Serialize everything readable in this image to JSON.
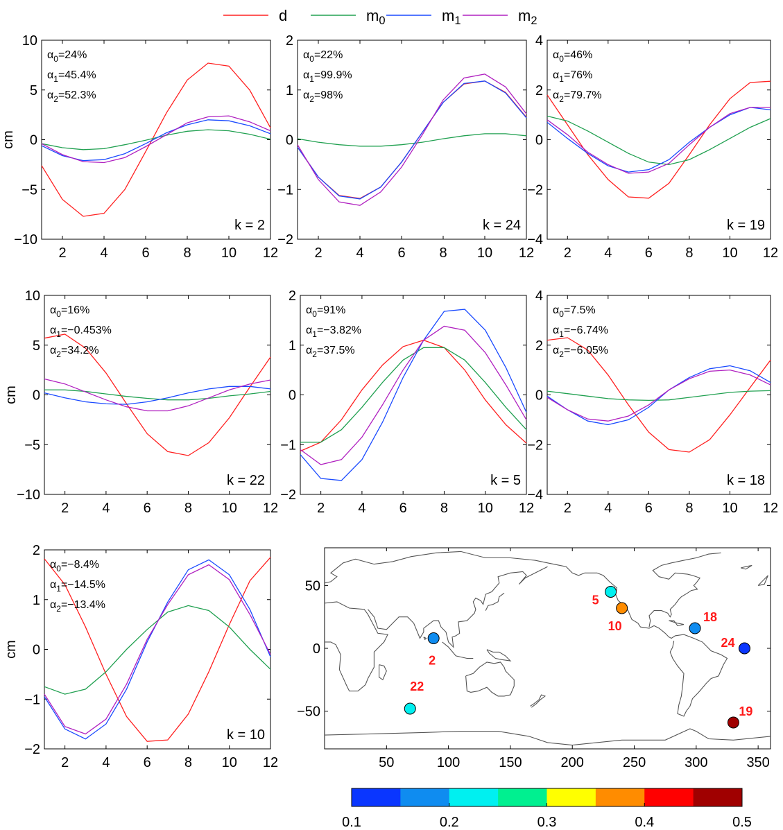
{
  "chart_data": {
    "legend": [
      {
        "label": "d",
        "sub": "",
        "color": "#ff2020"
      },
      {
        "label": "m",
        "sub": "0",
        "color": "#20a050"
      },
      {
        "label": "m",
        "sub": "1",
        "color": "#1a4aff"
      },
      {
        "label": "m",
        "sub": "2",
        "color": "#b020c0"
      }
    ],
    "ylabel": "cm",
    "x": [
      1,
      2,
      3,
      4,
      5,
      6,
      7,
      8,
      9,
      10,
      11,
      12
    ],
    "xticks": [
      2,
      4,
      6,
      8,
      10,
      12
    ],
    "panels": [
      {
        "type": "line",
        "k": "k = 2",
        "ylim": [
          -10,
          10
        ],
        "yticks": [
          -10,
          -5,
          0,
          5,
          10
        ],
        "alphas": [
          [
            "0",
            "24%"
          ],
          [
            "1",
            "45.4%"
          ],
          [
            "2",
            "52.3%"
          ]
        ],
        "series": [
          {
            "key": "d",
            "values": [
              -2.6,
              -6.0,
              -7.7,
              -7.4,
              -5.0,
              -1.2,
              2.7,
              6.0,
              7.7,
              7.4,
              5.0,
              1.2
            ]
          },
          {
            "key": "m0",
            "values": [
              -0.4,
              -0.8,
              -1.0,
              -0.9,
              -0.5,
              -0.05,
              0.45,
              0.85,
              1.0,
              0.9,
              0.55,
              0.05
            ]
          },
          {
            "key": "m1",
            "values": [
              -0.6,
              -1.6,
              -2.1,
              -2.0,
              -1.4,
              -0.4,
              0.7,
              1.5,
              2.0,
              1.9,
              1.4,
              0.6
            ]
          },
          {
            "key": "m2",
            "values": [
              -0.4,
              -1.5,
              -2.2,
              -2.3,
              -1.8,
              -0.7,
              0.5,
              1.7,
              2.3,
              2.4,
              1.8,
              0.9
            ]
          }
        ]
      },
      {
        "type": "line",
        "k": "k = 24",
        "ylim": [
          -2,
          2
        ],
        "yticks": [
          -2,
          -1,
          0,
          1,
          2
        ],
        "alphas": [
          [
            "0",
            "22%"
          ],
          [
            "1",
            "99.9%"
          ],
          [
            "2",
            "98%"
          ]
        ],
        "series": [
          {
            "key": "d",
            "values": [
              -0.15,
              -0.75,
              -1.12,
              -1.18,
              -0.95,
              -0.45,
              0.15,
              0.75,
              1.12,
              1.18,
              0.95,
              0.45
            ]
          },
          {
            "key": "m0",
            "values": [
              0.02,
              -0.05,
              -0.1,
              -0.13,
              -0.13,
              -0.1,
              -0.05,
              0.02,
              0.08,
              0.12,
              0.12,
              0.08
            ]
          },
          {
            "key": "m1",
            "values": [
              -0.15,
              -0.75,
              -1.13,
              -1.19,
              -0.95,
              -0.45,
              0.15,
              0.75,
              1.13,
              1.18,
              0.94,
              0.44
            ]
          },
          {
            "key": "m2",
            "values": [
              -0.1,
              -0.8,
              -1.25,
              -1.32,
              -1.05,
              -0.55,
              0.1,
              0.8,
              1.24,
              1.32,
              1.06,
              0.52
            ]
          }
        ]
      },
      {
        "type": "line",
        "k": "k = 19",
        "ylim": [
          -4,
          4
        ],
        "yticks": [
          -4,
          -2,
          0,
          2,
          4
        ],
        "alphas": [
          [
            "0",
            "46%"
          ],
          [
            "1",
            "76%"
          ],
          [
            "2",
            "79.7%"
          ]
        ],
        "series": [
          {
            "key": "d",
            "values": [
              1.8,
              0.6,
              -0.6,
              -1.6,
              -2.3,
              -2.35,
              -1.75,
              -0.6,
              0.6,
              1.65,
              2.3,
              2.35
            ]
          },
          {
            "key": "m0",
            "values": [
              0.95,
              0.75,
              0.35,
              -0.1,
              -0.55,
              -0.9,
              -1.0,
              -0.8,
              -0.4,
              0.05,
              0.5,
              0.85
            ]
          },
          {
            "key": "m1",
            "values": [
              0.7,
              0.05,
              -0.55,
              -1.05,
              -1.3,
              -1.2,
              -0.8,
              -0.1,
              0.5,
              1.0,
              1.3,
              1.2
            ]
          },
          {
            "key": "m2",
            "values": [
              0.8,
              0.2,
              -0.5,
              -1.0,
              -1.35,
              -1.3,
              -0.95,
              -0.2,
              0.5,
              1.05,
              1.3,
              1.3
            ]
          }
        ]
      },
      {
        "type": "line",
        "k": "k = 22",
        "ylim": [
          -10,
          10
        ],
        "yticks": [
          -10,
          -5,
          0,
          5,
          10
        ],
        "alphas": [
          [
            "0",
            "16%"
          ],
          [
            "1",
            "−0.453%"
          ],
          [
            "2",
            "34.2%"
          ]
        ],
        "series": [
          {
            "key": "d",
            "values": [
              5.7,
              6.1,
              4.7,
              2.2,
              -0.9,
              -3.9,
              -5.7,
              -6.1,
              -4.8,
              -2.3,
              0.8,
              3.8
            ]
          },
          {
            "key": "m0",
            "values": [
              0.5,
              0.5,
              0.35,
              0.1,
              -0.15,
              -0.35,
              -0.5,
              -0.5,
              -0.35,
              -0.1,
              0.1,
              0.35
            ]
          },
          {
            "key": "m1",
            "values": [
              0.2,
              -0.3,
              -0.7,
              -0.9,
              -0.95,
              -0.7,
              -0.3,
              0.2,
              0.6,
              0.85,
              0.85,
              0.6
            ]
          },
          {
            "key": "m2",
            "values": [
              1.6,
              1.1,
              0.3,
              -0.5,
              -1.2,
              -1.6,
              -1.6,
              -1.1,
              -0.3,
              0.5,
              1.1,
              1.5
            ]
          }
        ]
      },
      {
        "type": "line",
        "k": "k = 5",
        "ylim": [
          -2,
          2
        ],
        "yticks": [
          -2,
          -1,
          0,
          1,
          2
        ],
        "alphas": [
          [
            "0",
            "91%"
          ],
          [
            "1",
            "−3.82%"
          ],
          [
            "2",
            "37.5%"
          ]
        ],
        "series": [
          {
            "key": "d",
            "values": [
              -1.13,
              -0.95,
              -0.5,
              0.1,
              0.6,
              0.97,
              1.1,
              0.95,
              0.5,
              -0.1,
              -0.6,
              -0.97
            ]
          },
          {
            "key": "m0",
            "values": [
              -0.95,
              -0.95,
              -0.7,
              -0.25,
              0.25,
              0.7,
              0.95,
              0.95,
              0.7,
              0.25,
              -0.25,
              -0.7
            ]
          },
          {
            "key": "m1",
            "values": [
              -1.2,
              -1.68,
              -1.72,
              -1.3,
              -0.55,
              0.35,
              1.1,
              1.68,
              1.72,
              1.3,
              0.55,
              -0.35
            ]
          },
          {
            "key": "m2",
            "values": [
              -1.1,
              -1.4,
              -1.3,
              -0.85,
              -0.2,
              0.5,
              1.1,
              1.38,
              1.3,
              0.85,
              0.2,
              -0.5
            ]
          }
        ]
      },
      {
        "type": "line",
        "k": "k = 18",
        "ylim": [
          -4,
          4
        ],
        "yticks": [
          -4,
          -2,
          0,
          2,
          4
        ],
        "alphas": [
          [
            "0",
            "7.5%"
          ],
          [
            "1",
            "−6.74%"
          ],
          [
            "2",
            "−6.05%"
          ]
        ],
        "series": [
          {
            "key": "d",
            "values": [
              2.2,
              2.3,
              1.8,
              0.8,
              -0.4,
              -1.5,
              -2.2,
              -2.3,
              -1.8,
              -0.8,
              0.3,
              1.4
            ]
          },
          {
            "key": "m0",
            "values": [
              0.15,
              0.05,
              -0.05,
              -0.15,
              -0.2,
              -0.22,
              -0.2,
              -0.1,
              0.0,
              0.1,
              0.15,
              0.17
            ]
          },
          {
            "key": "m1",
            "values": [
              -0.05,
              -0.6,
              -1.05,
              -1.2,
              -1.0,
              -0.5,
              0.2,
              0.7,
              1.05,
              1.17,
              0.97,
              0.5
            ]
          },
          {
            "key": "m2",
            "values": [
              -0.1,
              -0.6,
              -0.97,
              -1.05,
              -0.85,
              -0.4,
              0.2,
              0.65,
              0.95,
              1.0,
              0.8,
              0.4
            ]
          }
        ]
      },
      {
        "type": "line",
        "k": "k = 10",
        "ylim": [
          -2,
          2
        ],
        "yticks": [
          -2,
          -1,
          0,
          1,
          2
        ],
        "alphas": [
          [
            "0",
            "−8.4%"
          ],
          [
            "1",
            "−14.5%"
          ],
          [
            "2",
            "−13.4%"
          ]
        ],
        "series": [
          {
            "key": "d",
            "values": [
              1.82,
              1.3,
              0.45,
              -0.5,
              -1.35,
              -1.85,
              -1.82,
              -1.3,
              -0.45,
              0.5,
              1.38,
              1.85
            ]
          },
          {
            "key": "m0",
            "values": [
              -0.75,
              -0.9,
              -0.8,
              -0.45,
              0.0,
              0.4,
              0.75,
              0.88,
              0.78,
              0.45,
              0.0,
              -0.4
            ]
          },
          {
            "key": "m1",
            "values": [
              -0.95,
              -1.6,
              -1.8,
              -1.5,
              -0.8,
              0.15,
              0.95,
              1.6,
              1.8,
              1.5,
              0.8,
              -0.15
            ]
          },
          {
            "key": "m2",
            "values": [
              -0.9,
              -1.55,
              -1.7,
              -1.4,
              -0.7,
              0.2,
              0.9,
              1.5,
              1.7,
              1.4,
              0.7,
              -0.1
            ]
          }
        ]
      }
    ],
    "map": {
      "xlim": [
        0,
        360
      ],
      "ylim": [
        -80,
        80
      ],
      "xticks": [
        50,
        100,
        150,
        200,
        250,
        300,
        350
      ],
      "yticks": [
        -50,
        0,
        50
      ],
      "stations": [
        {
          "label": "2",
          "lon": 88,
          "lat": 8,
          "value": 0.18
        },
        {
          "label": "22",
          "lon": 69,
          "lat": -48,
          "value": 0.22
        },
        {
          "label": "5",
          "lon": 231,
          "lat": 45,
          "value": 0.22
        },
        {
          "label": "10",
          "lon": 240,
          "lat": 32,
          "value": 0.37
        },
        {
          "label": "18",
          "lon": 299,
          "lat": 16,
          "value": 0.18
        },
        {
          "label": "24",
          "lon": 339,
          "lat": 0,
          "value": 0.12
        },
        {
          "label": "19",
          "lon": 330,
          "lat": -59,
          "value": 0.48
        }
      ]
    },
    "colorbar": {
      "ticks": [
        "0.1",
        "0.2",
        "0.3",
        "0.4",
        "0.5"
      ],
      "colors": [
        "#0a36ff",
        "#0f8cf0",
        "#00f0f0",
        "#00f090",
        "#ffff00",
        "#ff8c00",
        "#ff0000",
        "#a00000"
      ]
    }
  }
}
